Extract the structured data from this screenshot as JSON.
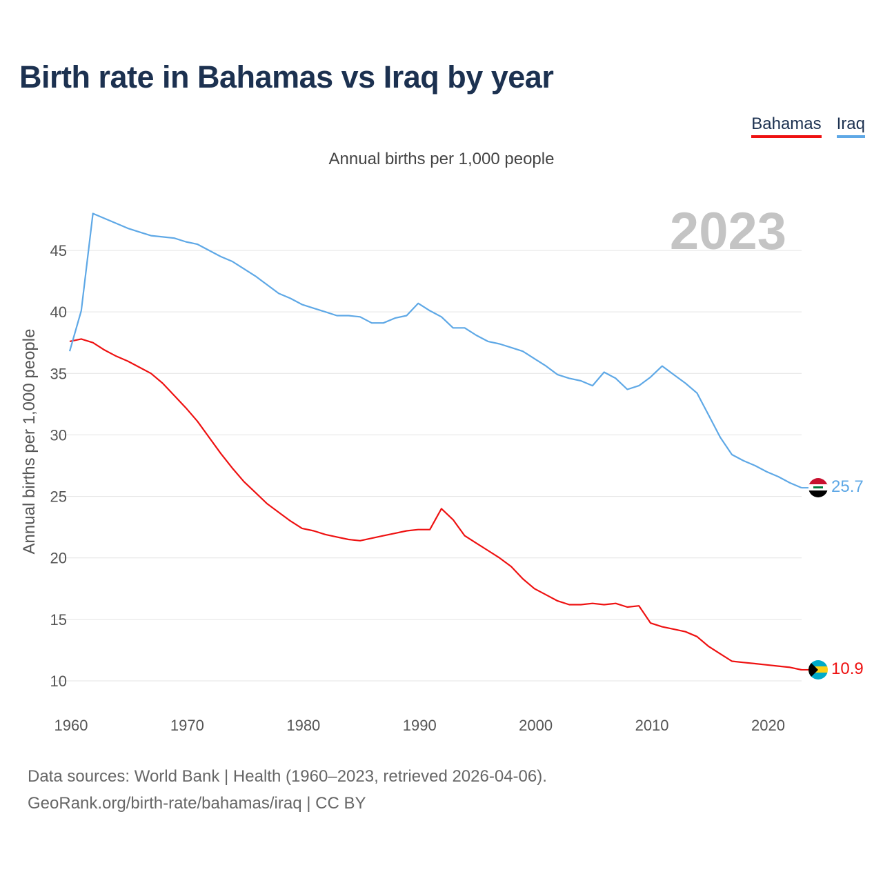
{
  "title": "Birth rate in Bahamas vs Iraq by year",
  "subtitle": "Annual births per 1,000 people",
  "legend": [
    {
      "name": "Bahamas",
      "color": "#ee1111"
    },
    {
      "name": "Iraq",
      "color": "#5ea8e6"
    }
  ],
  "footer": {
    "line1": "Data sources: World Bank | Health (1960–2023, retrieved 2026-04-06).",
    "line2": "GeoRank.org/birth-rate/bahamas/iraq | CC BY"
  },
  "chart_data": {
    "type": "line",
    "title": "Birth rate in Bahamas vs Iraq by year",
    "subtitle": "Annual births per 1,000 people",
    "xlabel": "",
    "ylabel": "Annual births per 1,000 people",
    "current_year_label": "2023",
    "xlim": [
      1960,
      2023
    ],
    "ylim": [
      8,
      49
    ],
    "x_ticks": [
      1960,
      1970,
      1980,
      1990,
      2000,
      2010,
      2020
    ],
    "y_ticks": [
      10,
      15,
      20,
      25,
      30,
      35,
      40,
      45
    ],
    "grid": true,
    "x": [
      1960,
      1961,
      1962,
      1963,
      1964,
      1965,
      1966,
      1967,
      1968,
      1969,
      1970,
      1971,
      1972,
      1973,
      1974,
      1975,
      1976,
      1977,
      1978,
      1979,
      1980,
      1981,
      1982,
      1983,
      1984,
      1985,
      1986,
      1987,
      1988,
      1989,
      1990,
      1991,
      1992,
      1993,
      1994,
      1995,
      1996,
      1997,
      1998,
      1999,
      2000,
      2001,
      2002,
      2003,
      2004,
      2005,
      2006,
      2007,
      2008,
      2009,
      2010,
      2011,
      2012,
      2013,
      2014,
      2015,
      2016,
      2017,
      2018,
      2019,
      2020,
      2021,
      2022,
      2023
    ],
    "series": [
      {
        "name": "Bahamas",
        "color": "#ee1111",
        "end_label": "10.9",
        "values": [
          37.6,
          37.8,
          37.5,
          36.9,
          36.4,
          36.0,
          35.5,
          35.0,
          34.2,
          33.2,
          32.2,
          31.1,
          29.8,
          28.5,
          27.3,
          26.2,
          25.3,
          24.4,
          23.7,
          23.0,
          22.4,
          22.2,
          21.9,
          21.7,
          21.5,
          21.4,
          21.6,
          21.8,
          22.0,
          22.2,
          22.3,
          22.3,
          24.0,
          23.1,
          21.8,
          21.2,
          20.6,
          20.0,
          19.3,
          18.3,
          17.5,
          17.0,
          16.5,
          16.2,
          16.2,
          16.3,
          16.2,
          16.3,
          16.0,
          16.1,
          14.7,
          14.4,
          14.2,
          14.0,
          13.6,
          12.8,
          12.2,
          11.6,
          11.5,
          11.4,
          11.3,
          11.2,
          11.1,
          10.9
        ]
      },
      {
        "name": "Iraq",
        "color": "#5ea8e6",
        "end_label": "25.7",
        "values": [
          36.8,
          40.1,
          48.0,
          47.6,
          47.2,
          46.8,
          46.5,
          46.2,
          46.1,
          46.0,
          45.7,
          45.5,
          45.0,
          44.5,
          44.1,
          43.5,
          42.9,
          42.2,
          41.5,
          41.1,
          40.6,
          40.3,
          40.0,
          39.7,
          39.7,
          39.6,
          39.1,
          39.1,
          39.5,
          39.7,
          40.7,
          40.1,
          39.6,
          38.7,
          38.7,
          38.1,
          37.6,
          37.4,
          37.1,
          36.8,
          36.2,
          35.6,
          34.9,
          34.6,
          34.4,
          34.0,
          35.1,
          34.6,
          33.7,
          34.0,
          34.7,
          35.6,
          34.9,
          34.2,
          33.4,
          31.6,
          29.8,
          28.4,
          27.9,
          27.5,
          27.0,
          26.6,
          26.1,
          25.7
        ]
      }
    ]
  }
}
